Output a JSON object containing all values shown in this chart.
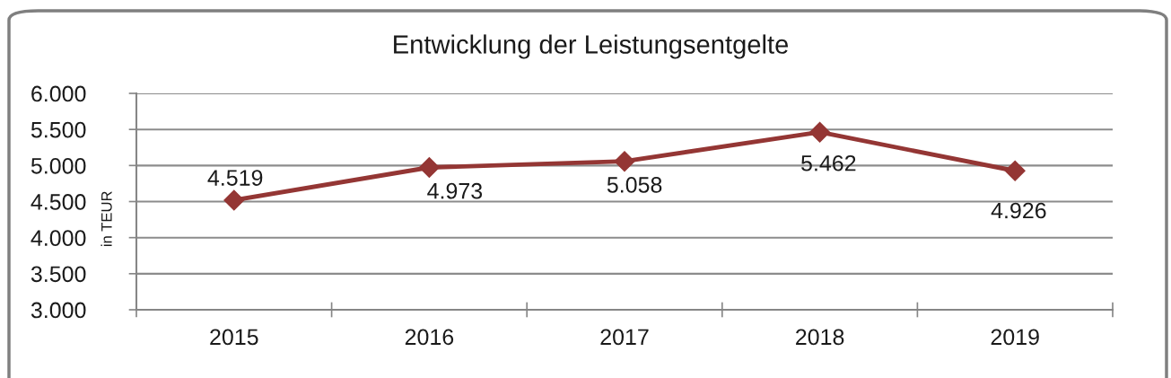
{
  "chart_data": {
    "type": "line",
    "title": "Entwicklung der Leistungsentgelte",
    "ylabel": "in TEUR",
    "categories": [
      "2015",
      "2016",
      "2017",
      "2018",
      "2019"
    ],
    "series": [
      {
        "color": "#943634",
        "values": [
          4519,
          4973,
          5058,
          5462,
          4926
        ],
        "value_labels": [
          "4.519",
          "4.973",
          "5.058",
          "5.462",
          "4.926"
        ]
      }
    ],
    "ylim": [
      3000,
      6000
    ],
    "yticks": [
      {
        "value": 3000,
        "label": "3.000"
      },
      {
        "value": 3500,
        "label": "3.500"
      },
      {
        "value": 4000,
        "label": "4.000"
      },
      {
        "value": 4500,
        "label": "4.500"
      },
      {
        "value": 5000,
        "label": "5.000"
      },
      {
        "value": 5500,
        "label": "5.500"
      },
      {
        "value": 6000,
        "label": "6.000"
      }
    ],
    "grid": "y",
    "marker": "diamond",
    "line_style": "solid"
  }
}
